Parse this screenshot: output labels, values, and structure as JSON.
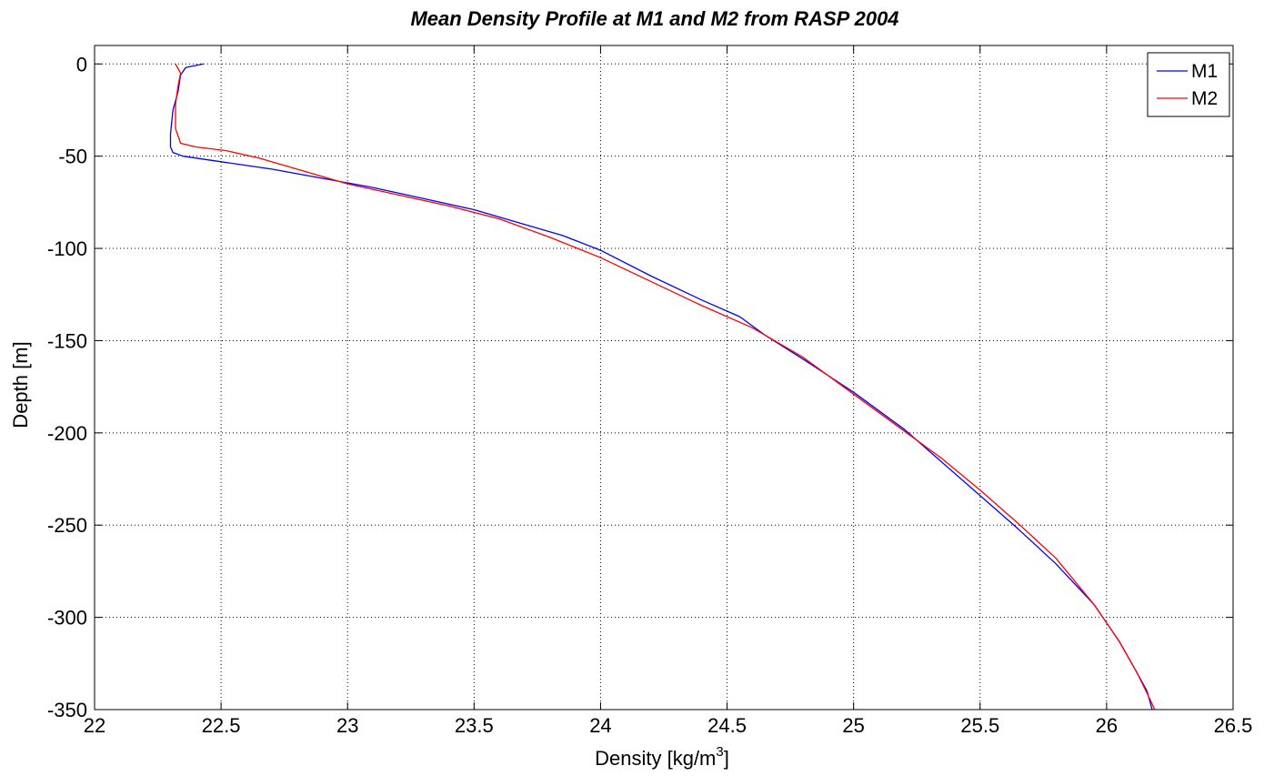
{
  "chart_data": {
    "type": "line",
    "title": "Mean Density Profile at M1 and M2 from RASP 2004",
    "xlabel": "Density [kg/m",
    "xlabel_superscript": "3",
    "xlabel_suffix": "]",
    "ylabel": "Depth [m]",
    "xlim": [
      22,
      26.5
    ],
    "ylim": [
      -350,
      0
    ],
    "xticks": [
      22,
      22.5,
      23,
      23.5,
      24,
      24.5,
      25,
      25.5,
      26,
      26.5
    ],
    "xtick_labels": [
      "22",
      "22.5",
      "23",
      "23.5",
      "24",
      "24.5",
      "25",
      "25.5",
      "26",
      "26.5"
    ],
    "yticks": [
      0,
      -50,
      -100,
      -150,
      -200,
      -250,
      -300,
      -350
    ],
    "ytick_labels": [
      "0",
      "-50",
      "-100",
      "-150",
      "-200",
      "-250",
      "-300",
      "-350"
    ],
    "grid": true,
    "legend_position": "top-right",
    "series": [
      {
        "name": "M1",
        "color": "#0000ff",
        "x": [
          22.43,
          22.36,
          22.34,
          22.33,
          22.31,
          22.3,
          22.3,
          22.31,
          22.35,
          22.5,
          22.7,
          22.9,
          23.1,
          23.3,
          23.5,
          23.7,
          23.85,
          24.0,
          24.2,
          24.4,
          24.55,
          24.65,
          24.8,
          25.0,
          25.2,
          25.35,
          25.5,
          25.65,
          25.8,
          25.95,
          26.05,
          26.12,
          26.16,
          26.18
        ],
        "y": [
          0,
          -2,
          -6,
          -15,
          -25,
          -38,
          -45,
          -48,
          -50,
          -53,
          -57,
          -62,
          -67,
          -73,
          -79,
          -87,
          -93,
          -101,
          -115,
          -128,
          -137,
          -147,
          -160,
          -178,
          -198,
          -216,
          -234,
          -252,
          -271,
          -293,
          -313,
          -330,
          -340,
          -350
        ]
      },
      {
        "name": "M2",
        "color": "#ff0000",
        "x": [
          22.32,
          22.34,
          22.33,
          22.32,
          22.32,
          22.34,
          22.4,
          22.52,
          22.65,
          22.8,
          23.0,
          23.2,
          23.4,
          23.6,
          23.8,
          24.0,
          24.2,
          24.4,
          24.6,
          24.8,
          25.0,
          25.2,
          25.35,
          25.5,
          25.65,
          25.8,
          25.95,
          26.05,
          26.12,
          26.17,
          26.19
        ],
        "y": [
          0,
          -5,
          -12,
          -22,
          -35,
          -43,
          -45,
          -47,
          -51,
          -57,
          -65,
          -71,
          -77,
          -84,
          -94,
          -105,
          -118,
          -131,
          -143,
          -159,
          -179,
          -199,
          -214,
          -231,
          -249,
          -268,
          -293,
          -313,
          -330,
          -344,
          -350
        ]
      }
    ]
  }
}
